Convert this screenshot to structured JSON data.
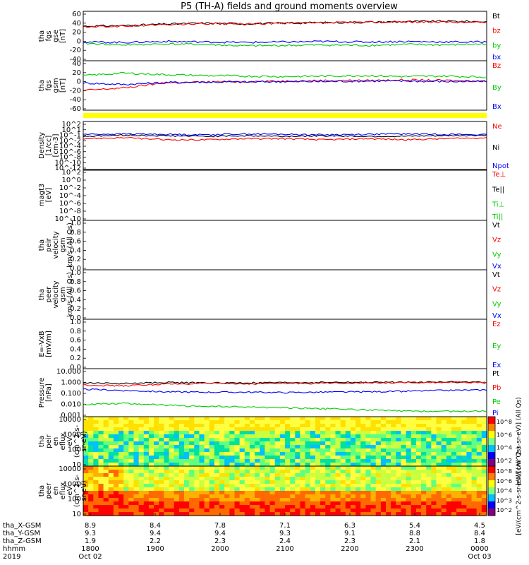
{
  "title": "P5 (TH-A) fields and ground moments overview",
  "colors": {
    "black": "#000000",
    "red": "#ff0000",
    "green": "#00cc00",
    "blue": "#0000ff",
    "yellow": "#ffff00"
  },
  "chart_data": {
    "type": "line",
    "x_time_ticks": [
      "1800",
      "1900",
      "2000",
      "2100",
      "2200",
      "2300",
      "0000"
    ],
    "x_date_labels": [
      "Oct 02",
      "Oct 03"
    ],
    "year": "2019",
    "ephemeris": {
      "labels": [
        "tha_X-GSM",
        "tha_Y-GSM",
        "tha_Z-GSM",
        "hhmm",
        "2019"
      ],
      "X": [
        "8.9",
        "8.4",
        "7.8",
        "7.1",
        "6.3",
        "5.4",
        "4.5"
      ],
      "Y": [
        "9.3",
        "9.4",
        "9.4",
        "9.3",
        "9.1",
        "8.8",
        "8.4"
      ],
      "Z": [
        "1.9",
        "2.2",
        "2.3",
        "2.4",
        "2.3",
        "2.1",
        "1.8"
      ]
    },
    "panels": [
      {
        "id": "fgs_gse",
        "ylabel": [
          "tha",
          "fgs",
          "gse",
          "[nT]"
        ],
        "yticks": [
          "60",
          "40",
          "20",
          "0",
          "-20",
          "-40"
        ],
        "ylim": [
          -40,
          60
        ],
        "legend": [
          {
            "name": "Bt",
            "color": "#000000"
          },
          {
            "name": "bz",
            "color": "#ff0000"
          },
          {
            "name": "by",
            "color": "#00cc00"
          },
          {
            "name": "bx",
            "color": "#0000ff"
          }
        ],
        "series": [
          {
            "name": "Bt",
            "values": [
              30,
              31,
              34,
              36,
              35,
              36,
              37,
              38,
              39,
              40,
              39
            ]
          },
          {
            "name": "bz",
            "values": [
              28,
              30,
              33,
              35,
              34,
              36,
              37,
              38,
              39,
              38,
              38
            ]
          },
          {
            "name": "by",
            "values": [
              -5,
              -8,
              -6,
              -7,
              -10,
              -9,
              -8,
              -9,
              -7,
              -8,
              -6
            ]
          },
          {
            "name": "bx",
            "values": [
              -2,
              -3,
              -1,
              -2,
              -3,
              -2,
              -1,
              -2,
              -1,
              -2,
              -2
            ]
          }
        ]
      },
      {
        "id": "fgs_gsm",
        "ylabel": [
          "tha",
          "fgs",
          "gsm",
          "[nT]"
        ],
        "yticks": [
          "40",
          "20",
          "0",
          "-20",
          "-40",
          "-60"
        ],
        "ylim": [
          -60,
          40
        ],
        "legend": [
          {
            "name": "Bz",
            "color": "#ff0000"
          },
          {
            "name": "By",
            "color": "#00cc00"
          },
          {
            "name": "Bx",
            "color": "#0000ff"
          }
        ],
        "series": [
          {
            "name": "Bz",
            "values": [
              -20,
              -15,
              -5,
              -3,
              -2,
              -1,
              0,
              0,
              1,
              0,
              -1
            ]
          },
          {
            "name": "By",
            "values": [
              10,
              15,
              12,
              10,
              9,
              8,
              9,
              10,
              8,
              9,
              7
            ]
          },
          {
            "name": "Bx",
            "values": [
              -5,
              -8,
              -4,
              -3,
              -3,
              -2,
              -2,
              -1,
              -1,
              -2,
              -2
            ]
          }
        ]
      },
      {
        "id": "density",
        "ylabel": [
          "Density",
          "[1/cc]",
          "[cm-3]"
        ],
        "yticks": [
          "10^2",
          "10^1",
          "10^-1",
          "10^-2",
          "10^-4",
          "10^-6",
          "10^-8",
          "10^-10",
          "10^-12"
        ],
        "legend": [
          {
            "name": "Ne",
            "color": "#ff0000"
          },
          {
            "name": "Ni",
            "color": "#000000"
          },
          {
            "name": "Npot",
            "color": "#0000ff"
          }
        ],
        "series": [
          {
            "name": "Ne",
            "values": [
              0.5,
              0.6,
              0.4,
              0.4,
              0.5,
              0.5,
              0.4,
              0.5,
              0.4,
              0.5,
              0.6
            ]
          },
          {
            "name": "Ni",
            "values": [
              0.8,
              1.0,
              0.9,
              0.8,
              0.9,
              0.8,
              0.9,
              0.8,
              0.8,
              0.9,
              1.0
            ]
          },
          {
            "name": "Npot",
            "values": [
              1.2,
              1.3,
              1.2,
              1.1,
              1.3,
              1.2,
              1.1,
              1.2,
              1.3,
              1.2,
              1.1
            ]
          }
        ]
      },
      {
        "id": "temperature",
        "ylabel": [
          "magt3",
          "[eV]"
        ],
        "yticks": [
          "10^2",
          "10^0",
          "10^-2",
          "10^-4",
          "10^-6",
          "10^-8",
          "10^-10"
        ],
        "legend": [
          {
            "name": "Te⊥",
            "color": "#ff0000"
          },
          {
            "name": "Te||",
            "color": "#000000"
          },
          {
            "name": "Ti⊥",
            "color": "#00cc00"
          },
          {
            "name": "Ti||",
            "color": "#00cc00"
          }
        ],
        "series": [
          {
            "name": "Te",
            "values": [
              80,
              70,
              90,
              100,
              90,
              80,
              70,
              80,
              90,
              100,
              60
            ]
          },
          {
            "name": "Ti",
            "values": [
              300,
              320,
              350,
              330,
              300,
              340,
              350,
              320,
              300,
              310,
              280
            ]
          }
        ]
      },
      {
        "id": "peir_velocity",
        "ylabel": [
          "tha",
          "peir",
          "velocity",
          "gsm",
          "km/s (All Qs)"
        ],
        "yticks": [
          "1.0",
          "0.8",
          "0.6",
          "0.4",
          "0.2",
          "0.0"
        ],
        "legend": [
          {
            "name": "Vt",
            "color": "#000000"
          },
          {
            "name": "Vz",
            "color": "#ff0000"
          },
          {
            "name": "Vy",
            "color": "#00cc00"
          },
          {
            "name": "Vx",
            "color": "#0000ff"
          }
        ],
        "series": []
      },
      {
        "id": "peer_velocity",
        "ylabel": [
          "tha",
          "peer",
          "velocity",
          "gsm",
          "km/s (All Qs)"
        ],
        "yticks": [
          "1.0",
          "0.8",
          "0.6",
          "0.4",
          "0.2",
          "0.0"
        ],
        "legend": [
          {
            "name": "Vt",
            "color": "#000000"
          },
          {
            "name": "Vz",
            "color": "#ff0000"
          },
          {
            "name": "Vy",
            "color": "#00cc00"
          },
          {
            "name": "Vx",
            "color": "#0000ff"
          }
        ],
        "series": []
      },
      {
        "id": "efield",
        "ylabel": [
          "E=-VxB",
          "[mV/m]"
        ],
        "yticks": [
          "1.0",
          "0.8",
          "0.6",
          "0.4",
          "0.2",
          "0.0"
        ],
        "legend": [
          {
            "name": "Ez",
            "color": "#ff0000"
          },
          {
            "name": "Ey",
            "color": "#00cc00"
          },
          {
            "name": "Ex",
            "color": "#0000ff"
          }
        ],
        "series": []
      },
      {
        "id": "pressure",
        "ylabel": [
          "Pressure",
          "[nPa]"
        ],
        "yticks": [
          "10.000",
          "1.000",
          "0.100",
          "0.010",
          "0.001"
        ],
        "legend": [
          {
            "name": "Pt",
            "color": "#000000"
          },
          {
            "name": "Pb",
            "color": "#ff0000"
          },
          {
            "name": "Pe",
            "color": "#00cc00"
          },
          {
            "name": "Pi",
            "color": "#0000ff"
          }
        ],
        "series": [
          {
            "name": "Pt",
            "values": [
              0.9,
              0.8,
              1.0,
              0.9,
              0.9,
              0.95,
              1.0,
              1.0,
              1.05,
              1.1,
              1.0
            ]
          },
          {
            "name": "Pb",
            "values": [
              0.6,
              0.5,
              0.7,
              0.8,
              0.75,
              0.8,
              0.85,
              0.9,
              0.95,
              1.0,
              0.95
            ]
          },
          {
            "name": "Pi",
            "values": [
              0.25,
              0.2,
              0.15,
              0.14,
              0.14,
              0.13,
              0.14,
              0.15,
              0.17,
              0.2,
              0.22
            ]
          },
          {
            "name": "Pe",
            "values": [
              0.012,
              0.015,
              0.01,
              0.008,
              0.007,
              0.006,
              0.005,
              0.004,
              0.003,
              0.003,
              0.003
            ]
          }
        ]
      },
      {
        "id": "peir_flux",
        "ylabel": [
          "tha",
          "peir",
          "en",
          "eflux",
          "eV",
          "(cm^2-s-",
          "sr-eV)"
        ],
        "yticks": [
          "10000",
          "1000",
          "100",
          "10"
        ],
        "colorbar": {
          "label": "[eV/(cm^2-s-sr-eV)] (All Qs)",
          "ticks": [
            "10^8",
            "10^6",
            "10^4",
            "10^2"
          ]
        }
      },
      {
        "id": "peer_flux",
        "ylabel": [
          "tha",
          "peer",
          "en",
          "eflux",
          "eV",
          "(cm^2-s-",
          "sr-eV)"
        ],
        "yticks": [
          "10000",
          "1000",
          "100",
          "10"
        ],
        "colorbar": {
          "label": "[eV/(cm^2-s-sr-eV)] (All Qs)",
          "ticks": [
            "10^8",
            "10^6",
            "10^4",
            "10^3",
            "10^2"
          ]
        }
      }
    ]
  }
}
